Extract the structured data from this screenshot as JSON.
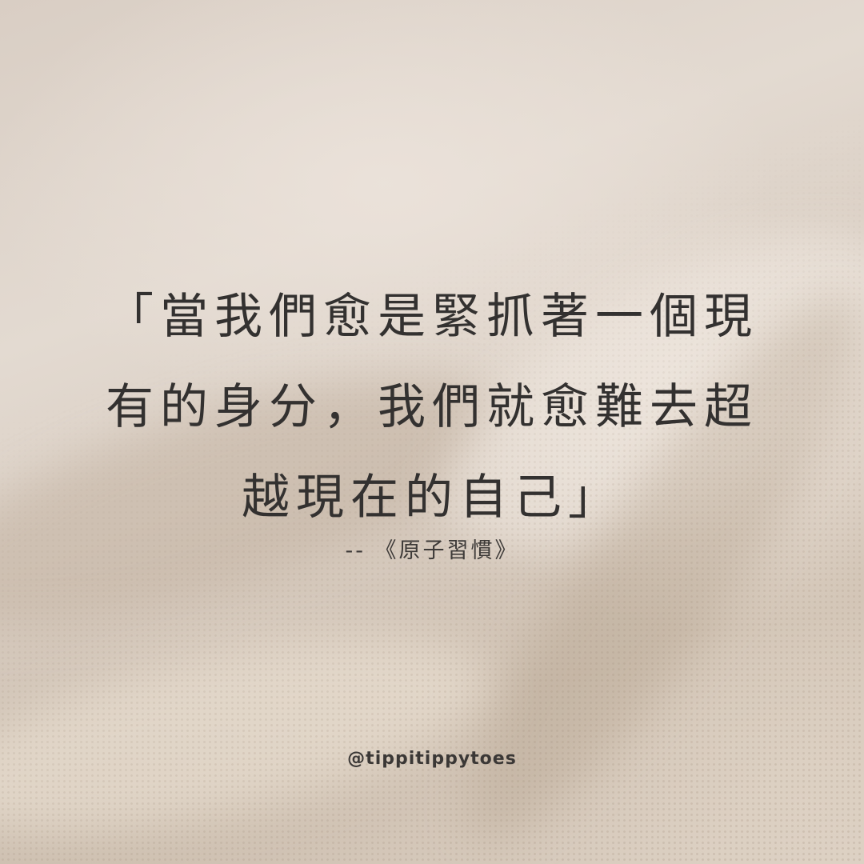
{
  "quote": {
    "lines": [
      "「當我們愈是緊抓著一個現",
      "有的身分，我們就愈難去超",
      "越現在的自己」"
    ]
  },
  "source": "-- 《原子習慣》",
  "handle": "@tippitippytoes",
  "colors": {
    "background": "#d9cec4",
    "text": "#333130"
  }
}
